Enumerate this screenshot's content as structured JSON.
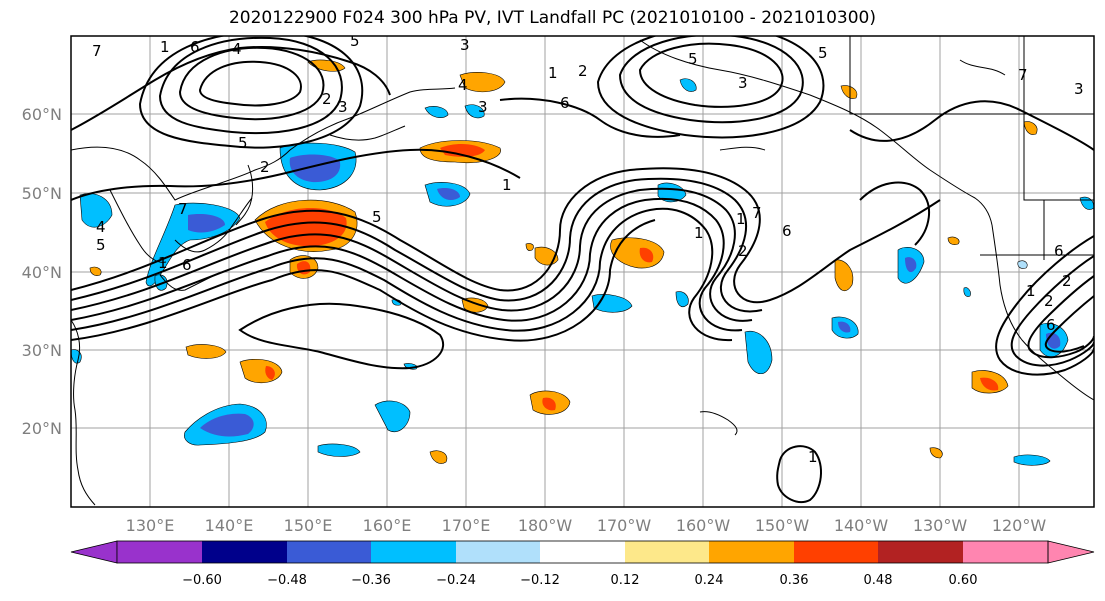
{
  "title": "2020122900 F024 300 hPa PV, IVT Landfall PC (2021010100 - 2021010300)",
  "latitude_labels": [
    "60°N",
    "50°N",
    "40°N",
    "30°N",
    "20°N"
  ],
  "longitude_labels": [
    "130°E",
    "140°E",
    "150°E",
    "160°E",
    "170°E",
    "180°W",
    "170°W",
    "160°W",
    "150°W",
    "140°W",
    "130°W",
    "120°W"
  ],
  "contour_labels": [
    "7",
    "1",
    "6",
    "4",
    "5",
    "3",
    "2",
    "3",
    "5",
    "2",
    "4",
    "3",
    "1",
    "2",
    "6",
    "5",
    "3",
    "7",
    "1",
    "5",
    "4",
    "7",
    "6",
    "1",
    "5",
    "5",
    "2",
    "6",
    "1",
    "7",
    "6",
    "2",
    "1",
    "2",
    "1",
    "6",
    "3",
    "1"
  ],
  "colorbar": {
    "tick_labels": [
      "−0.60",
      "−0.48",
      "−0.36",
      "−0.24",
      "−0.12",
      "0.12",
      "0.24",
      "0.36",
      "0.48",
      "0.60"
    ],
    "colors": [
      "#9932cc",
      "#00008b",
      "#3a5bd6",
      "#00bfff",
      "#b0e0fb",
      "#ffffff",
      "#fde88a",
      "#ffa500",
      "#ff4000",
      "#b22222",
      "#ff85b0"
    ]
  }
}
